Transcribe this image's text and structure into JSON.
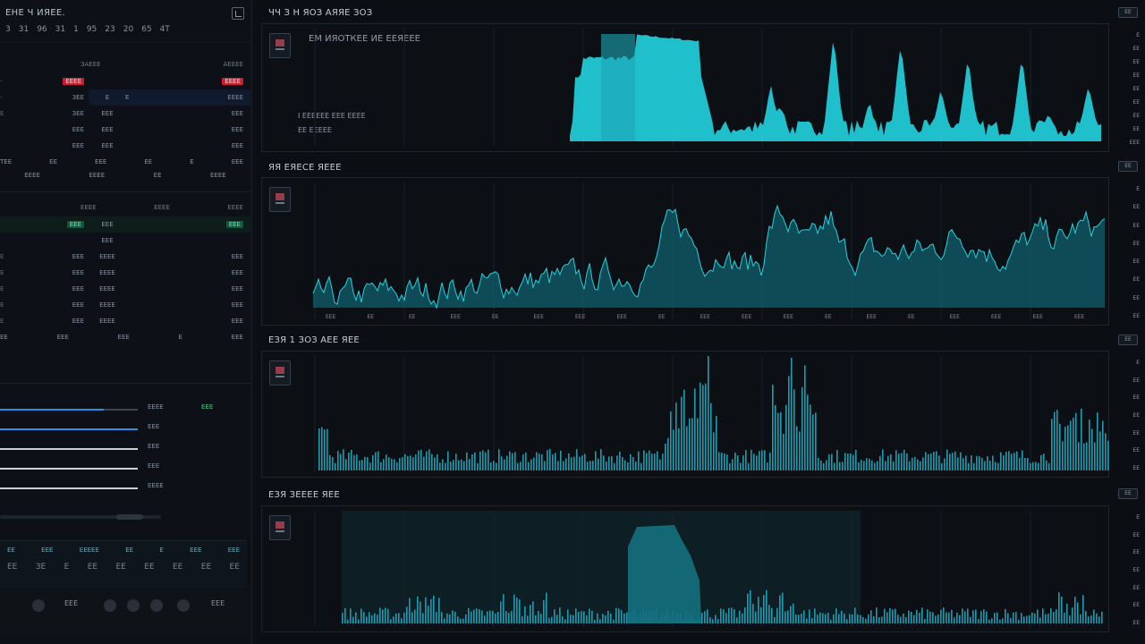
{
  "sidebar": {
    "title": "ЕНЕ Ч ИЯЕЕ.",
    "ticker": [
      "3",
      "31",
      "96",
      "31",
      "1",
      "95",
      "23",
      "20",
      "65",
      "4Т"
    ],
    "table1": {
      "heads": [
        "ЗАЕЕЕ",
        "АЕЕЕЕ"
      ],
      "rows": [
        {
          "c0": "-",
          "c1": "",
          "c2": "",
          "c3": "",
          "c4": "",
          "badge1": "ЕЕЕЕ",
          "badge2": "ЕЕЕЕ",
          "type": "red"
        },
        {
          "c0": "-",
          "c1": "ЗЕЕ",
          "c2": "Е",
          "c3": "Е",
          "c4": "ЕЕЕЕ",
          "type": "hl-red"
        },
        {
          "c0": "Е",
          "c1": "ЗЕЕ",
          "c2": "ЕЕЕ",
          "c3": "",
          "c4": "ЕЕЕ",
          "type": ""
        },
        {
          "c0": "",
          "c1": "ЕЕЕ",
          "c2": "ЕЕЕ",
          "c3": "",
          "c4": "ЕЕЕ",
          "type": ""
        },
        {
          "c0": "",
          "c1": "ЕЕЕ",
          "c2": "ЕЕЕ",
          "c3": "",
          "c4": "ЕЕЕ",
          "type": ""
        }
      ],
      "footer": [
        "ТЕЕ",
        "ЕЕ",
        "ЕЕЕ",
        "ЕЕ",
        "Е",
        "ЕЕЕ"
      ],
      "footer2": [
        "ЕЕЕЕ",
        "ЕЕЕЕ",
        "ЕЕ",
        "ЕЕЕЕ"
      ]
    },
    "table2": {
      "heads": [
        "ЕЕЕЕ",
        "ЕЕЕЕ",
        "ЕЕЕЕ"
      ],
      "rows": [
        {
          "c0": "",
          "c1": "ЕЕЕ",
          "c2": "",
          "c3": "",
          "c4": "",
          "badge1": "ЕЕЕ",
          "badge2": "ЕЕЕ",
          "type": "green"
        },
        {
          "c0": "",
          "c1": "",
          "c2": "ЕЕЕ",
          "c3": "",
          "c4": "",
          "type": ""
        },
        {
          "c0": "Е",
          "c1": "ЕЕЕ",
          "c2": "ЕЕЕЕ",
          "c3": "",
          "c4": "ЕЕЕ",
          "type": ""
        },
        {
          "c0": "Е",
          "c1": "ЕЕЕ",
          "c2": "ЕЕЕЕ",
          "c3": "",
          "c4": "ЕЕЕ",
          "type": ""
        },
        {
          "c0": "Е",
          "c1": "ЕЕЕ",
          "c2": "ЕЕЕЕ",
          "c3": "",
          "c4": "ЕЕЕ",
          "type": ""
        },
        {
          "c0": "Е",
          "c1": "ЕЕЕ",
          "c2": "ЕЕЕЕ",
          "c3": "",
          "c4": "ЕЕЕ",
          "type": ""
        },
        {
          "c0": "Е",
          "c1": "ЕЕЕ",
          "c2": "ЕЕЕЕ",
          "c3": "",
          "c4": "ЕЕЕ",
          "type": ""
        }
      ],
      "footer": [
        "ЕЕ",
        "ЕЕЕ",
        "ЕЕЕ",
        "Е",
        "ЕЕЕ"
      ]
    },
    "sliders": [
      {
        "fill": 0.75,
        "v1": "ЕЕЕЕ",
        "v2": "ЕЕЕ"
      },
      {
        "fill": 1.0,
        "v1": "ЕЕЕ",
        "v2": ""
      },
      {
        "fill": 0.0,
        "v1": "ЕЕЕ",
        "v2": ""
      },
      {
        "fill": 0.0,
        "v1": "ЕЕЕ",
        "v2": ""
      },
      {
        "fill": 0.0,
        "v1": "ЕЕЕЕ",
        "v2": ""
      }
    ],
    "tiles_top": [
      "ЕЕ",
      "ЕЕЕ",
      "ЕЕЕЕЕ",
      "ЕЕ",
      "Е",
      "ЕЕЕ",
      "ЕЕЕ"
    ],
    "tiles_bottom": [
      "ЕЕ",
      "ЗЕ",
      "Е",
      "ЕЕ",
      "ЕЕ",
      "ЕЕ",
      "ЕЕ",
      "ЕЕ",
      "ЕЕ"
    ],
    "footer_vals": [
      "ЕЕЕ",
      "ЕЕЕ"
    ]
  },
  "panels": [
    {
      "title": "ЧЧ З Н ЯОЗ АЯЯЕ ЗОЗ",
      "btn": "ЕЕ",
      "sub1": "ЕМ ИЯОТКЕЕ ИЕ ЕЕЯЕЕЕ",
      "sub2": "І ЕЕЕЕЕЕ ЕЕЕ ЕЕЕЕ",
      "sub3": "ЕЕ ЕЕЕЕЕ"
    },
    {
      "title": "ЯЯ ЕЯЕСЕ ЯЕЕЕ",
      "btn": "ЕЕ"
    },
    {
      "title": "ЕЗЯ 1 ЗОЗ АЕЕ ЯЕЕ",
      "btn": "ЕЕ"
    },
    {
      "title": "ЕЗЯ ЗЕЕЕЕ ЯЕЕ",
      "btn": "ЕЕ"
    }
  ],
  "axis": {
    "p1": [
      "Е",
      "ЕЕ",
      "ЕЕ",
      "ЕЕ",
      "ЕЕ",
      "ЕЕ",
      "ЕЕ",
      "ЕЕ",
      "ЕЕЕ"
    ],
    "p2": [
      "Е",
      "ЕЕ",
      "ЕЕ",
      "ЕЕ",
      "ЕЕ",
      "ЕЕ",
      "ЕЕ",
      "ЕЕ"
    ],
    "p3": [
      "Е",
      "ЕЕ",
      "ЕЕ",
      "ЕЕ",
      "ЕЕ",
      "ЕЕ",
      "ЕЕ"
    ],
    "p4": [
      "Е",
      "ЕЕ",
      "ЕЕ",
      "ЕЕ",
      "ЕЕ",
      "ЕЕ",
      "ЕЕ"
    ],
    "xticks": [
      "ЕЕЕ",
      "ЕЕ",
      "ЕЕ",
      "ЕЕЕ",
      "ЕЕ",
      "ЕЕЕ",
      "ЕЕЕ",
      "ЕЕЕ",
      "ЕЕ",
      "ЕЕЕ",
      "ЕЕЕ",
      "ЕЕЕ",
      "ЕЕ",
      "ЕЕЕ",
      "ЕЕ",
      "ЕЕЕ",
      "ЕЕЕ",
      "ЕЕЕ",
      "ЕЕЕ",
      "ЕЕЕ"
    ]
  },
  "colors": {
    "accent": "#22d3e0",
    "accent_dim": "#1a9db0",
    "area": "#0f5f6e",
    "red": "#d01a2e",
    "green": "#14543f",
    "blue": "#2f8fe8"
  }
}
